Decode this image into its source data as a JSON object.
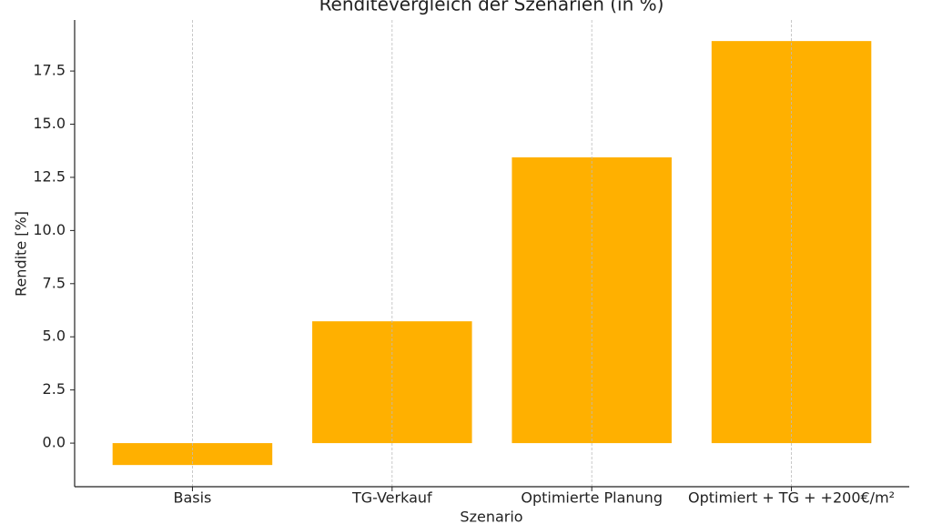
{
  "chart_data": {
    "type": "bar",
    "title": "Renditevergleich der Szenarien (in %)",
    "x_label": "Szenario",
    "y_label": "Rendite [%]",
    "categories": [
      "Basis",
      "TG-Verkauf",
      "Optimierte Planung",
      "Optimiert + TG + +200€/m²"
    ],
    "values": [
      -1.03,
      5.73,
      13.44,
      18.91
    ],
    "color": "#ffb000",
    "ylim": [
      -2.05,
      19.9
    ],
    "yticks": [
      {
        "value": 0,
        "label": "0.0"
      },
      2.5,
      {
        "value": 5,
        "label": "5.0"
      },
      7.5,
      {
        "value": 10,
        "label": "10.0"
      },
      12.5,
      {
        "value": 15,
        "label": "15.0"
      },
      17.5
    ],
    "grid": "x"
  }
}
